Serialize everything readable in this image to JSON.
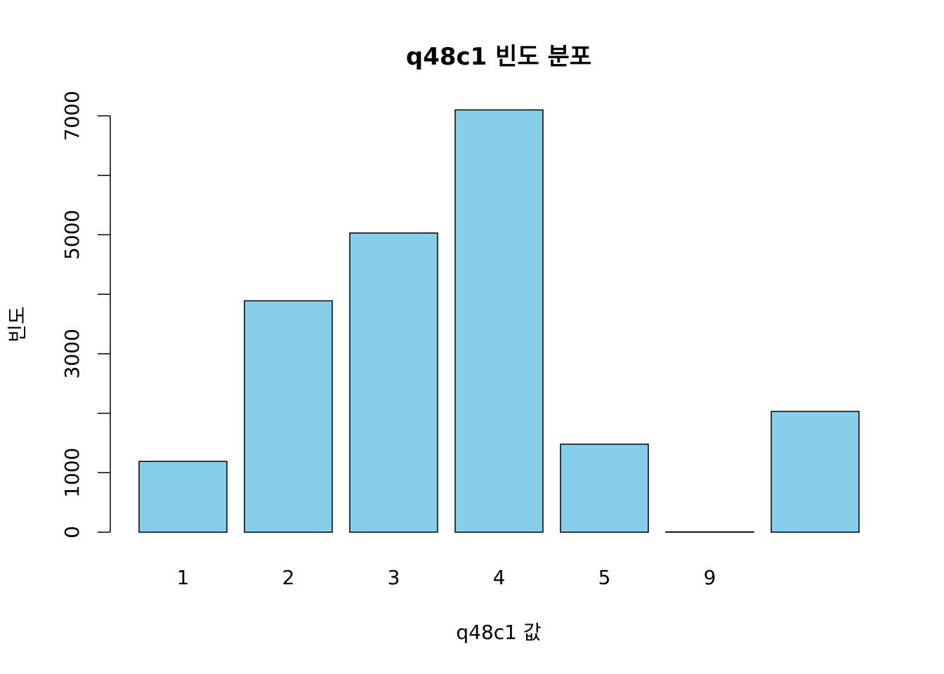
{
  "chart_data": {
    "type": "bar",
    "title": "q48c1 빈도 분포",
    "xlabel": "q48c1 값",
    "ylabel": "빈도",
    "categories": [
      "1",
      "2",
      "3",
      "4",
      "5",
      "9",
      ""
    ],
    "values": [
      1190,
      3890,
      5030,
      7100,
      1480,
      5,
      2030
    ],
    "ylim": [
      0,
      7000
    ],
    "yticks": [
      "0",
      "1000",
      "3000",
      "5000",
      "7000"
    ],
    "bar_color": "#87CEEB",
    "grid": false,
    "legend": "none"
  }
}
